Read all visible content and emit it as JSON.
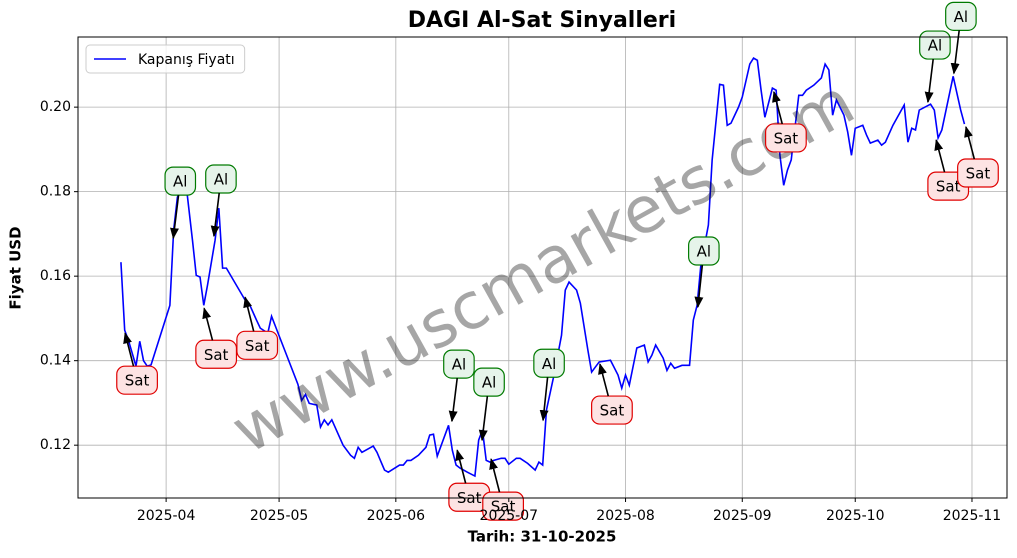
{
  "chart_data": {
    "type": "line",
    "title": "DAGI Al-Sat Sinyalleri",
    "xlabel": "Tarih: 31-10-2025",
    "ylabel": "Fiyat USD",
    "watermark": "www.uscmarkets.com",
    "xlim": [
      67.6,
      314.3
    ],
    "ylim": [
      0.1075,
      0.2166
    ],
    "xticks": [
      {
        "value": 91,
        "label": "2025-04"
      },
      {
        "value": 121,
        "label": "2025-05"
      },
      {
        "value": 152,
        "label": "2025-06"
      },
      {
        "value": 182,
        "label": "2025-07"
      },
      {
        "value": 213,
        "label": "2025-08"
      },
      {
        "value": 244,
        "label": "2025-09"
      },
      {
        "value": 274,
        "label": "2025-10"
      },
      {
        "value": 305,
        "label": "2025-11"
      }
    ],
    "yticks": [
      0.12,
      0.14,
      0.16,
      0.18,
      {
        "value": 0.2,
        "label": "0.20"
      }
    ],
    "grid": true,
    "legend": "upper left",
    "series": [
      {
        "name": "Kapanış Fiyatı",
        "color": "#0000ff",
        "x": [
          79,
          80,
          81,
          83,
          84,
          85,
          86,
          87,
          92,
          93,
          94,
          95,
          96,
          98,
          99,
          100,
          101,
          102,
          104,
          105,
          106,
          107,
          112,
          113,
          115,
          116,
          118,
          119,
          120,
          126,
          127,
          128,
          129,
          131,
          132,
          133,
          134,
          135,
          138,
          140,
          141,
          142,
          143,
          146,
          147,
          149,
          150,
          153,
          154,
          155,
          156,
          158,
          160,
          161,
          162,
          163,
          166,
          167,
          168,
          169,
          171,
          173,
          174,
          175,
          176,
          177,
          178,
          180,
          181,
          182,
          184,
          185,
          187,
          189,
          190,
          191,
          192,
          194,
          196,
          197,
          198,
          200,
          201,
          203,
          204,
          206,
          209,
          211,
          212,
          213,
          214,
          216,
          218,
          219,
          220,
          221,
          223,
          224,
          225,
          226,
          228,
          230,
          231,
          232,
          233,
          235,
          236,
          238,
          239,
          240,
          241,
          243,
          244,
          246,
          247,
          248,
          249,
          250,
          252,
          253,
          254,
          255,
          256,
          257,
          259,
          260,
          261,
          263,
          265,
          266,
          267,
          268,
          269,
          271,
          272,
          273,
          274,
          276,
          277,
          278,
          280,
          281,
          282,
          284,
          287,
          288,
          289,
          290,
          291,
          294,
          295,
          296,
          297,
          300,
          302,
          303
        ],
        "values": [
          0.1633,
          0.1472,
          0.1448,
          0.1387,
          0.1446,
          0.14,
          0.1387,
          0.139,
          0.1531,
          0.1709,
          0.1787,
          0.1805,
          0.184,
          0.1685,
          0.1602,
          0.1598,
          0.1531,
          0.1579,
          0.1685,
          0.1761,
          0.1619,
          0.1619,
          0.1543,
          0.1536,
          0.1496,
          0.1477,
          0.1465,
          0.1505,
          0.1482,
          0.1344,
          0.1306,
          0.132,
          0.1299,
          0.1295,
          0.1243,
          0.126,
          0.1248,
          0.126,
          0.12,
          0.1176,
          0.1169,
          0.1195,
          0.1183,
          0.1198,
          0.1183,
          0.1141,
          0.1136,
          0.1153,
          0.1153,
          0.1164,
          0.1164,
          0.1176,
          0.1195,
          0.1224,
          0.1226,
          0.1174,
          0.1247,
          0.1188,
          0.1153,
          0.1146,
          0.1136,
          0.1127,
          0.1212,
          0.1236,
          0.1164,
          0.116,
          0.1164,
          0.1169,
          0.1169,
          0.1155,
          0.1169,
          0.1169,
          0.1157,
          0.1141,
          0.116,
          0.1153,
          0.1283,
          0.1366,
          0.146,
          0.1567,
          0.1586,
          0.1567,
          0.1536,
          0.1425,
          0.1373,
          0.1397,
          0.1401,
          0.1366,
          0.1335,
          0.1366,
          0.1342,
          0.143,
          0.1437,
          0.1397,
          0.1413,
          0.1437,
          0.1406,
          0.1377,
          0.1394,
          0.1382,
          0.1389,
          0.1389,
          0.1496,
          0.1531,
          0.1626,
          0.1721,
          0.1875,
          0.2054,
          0.2052,
          0.1957,
          0.1962,
          0.2,
          0.2024,
          0.2102,
          0.2116,
          0.2111,
          0.204,
          0.1976,
          0.2045,
          0.204,
          0.1886,
          0.1815,
          0.1851,
          0.1875,
          0.2028,
          0.2028,
          0.204,
          0.2052,
          0.2069,
          0.2102,
          0.2088,
          0.1981,
          0.2017,
          0.1981,
          0.1941,
          0.1886,
          0.195,
          0.1957,
          0.1934,
          0.1915,
          0.1922,
          0.191,
          0.1917,
          0.1957,
          0.2005,
          0.1917,
          0.195,
          0.1946,
          0.1993,
          0.2007,
          0.1993,
          0.1927,
          0.1946,
          0.2073,
          0.1993,
          0.196
        ]
      }
    ],
    "annotations": [
      {
        "text": "Sat",
        "x": 80.1,
        "y": 0.1465,
        "edgecolor": "#e00000",
        "facecolor": "#fde3e3"
      },
      {
        "text": "Al",
        "x": 92.9,
        "y": 0.169,
        "edgecolor": "#007a00",
        "facecolor": "#e6f4ea"
      },
      {
        "text": "Al",
        "x": 103.7,
        "y": 0.1695,
        "edgecolor": "#007a00",
        "facecolor": "#e6f4ea"
      },
      {
        "text": "Sat",
        "x": 101.1,
        "y": 0.1524,
        "edgecolor": "#e00000",
        "facecolor": "#fde3e3"
      },
      {
        "text": "Sat",
        "x": 112.0,
        "y": 0.155,
        "edgecolor": "#e00000",
        "facecolor": "#fde3e3"
      },
      {
        "text": "Al",
        "x": 166.9,
        "y": 0.1257,
        "edgecolor": "#007a00",
        "facecolor": "#e6f4ea"
      },
      {
        "text": "Sat",
        "x": 168.3,
        "y": 0.1188,
        "edgecolor": "#e00000",
        "facecolor": "#fde3e3"
      },
      {
        "text": "Al",
        "x": 174.9,
        "y": 0.1212,
        "edgecolor": "#007a00",
        "facecolor": "#e6f4ea"
      },
      {
        "text": "Sat",
        "x": 177.3,
        "y": 0.1167,
        "edgecolor": "#e00000",
        "facecolor": "#fde3e3"
      },
      {
        "text": "Al",
        "x": 191.1,
        "y": 0.1259,
        "edgecolor": "#007a00",
        "facecolor": "#e6f4ea"
      },
      {
        "text": "Sat",
        "x": 206.2,
        "y": 0.1392,
        "edgecolor": "#e00000",
        "facecolor": "#fde3e3"
      },
      {
        "text": "Al",
        "x": 232.2,
        "y": 0.1527,
        "edgecolor": "#007a00",
        "facecolor": "#e6f4ea"
      },
      {
        "text": "Sat",
        "x": 252.4,
        "y": 0.2036,
        "edgecolor": "#e00000",
        "facecolor": "#fde3e3"
      },
      {
        "text": "Al",
        "x": 293.3,
        "y": 0.2012,
        "edgecolor": "#007a00",
        "facecolor": "#e6f4ea"
      },
      {
        "text": "Sat",
        "x": 295.5,
        "y": 0.1922,
        "edgecolor": "#e00000",
        "facecolor": "#fde3e3"
      },
      {
        "text": "Al",
        "x": 300.2,
        "y": 0.208,
        "edgecolor": "#007a00",
        "facecolor": "#e6f4ea"
      },
      {
        "text": "Sat",
        "x": 303.4,
        "y": 0.1953,
        "edgecolor": "#e00000",
        "facecolor": "#fde3e3"
      }
    ]
  }
}
